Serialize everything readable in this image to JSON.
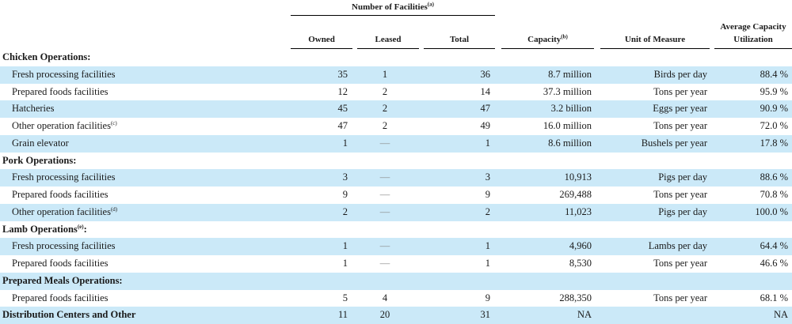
{
  "header": {
    "group_title": "Number of Facilities",
    "group_note": "(a)",
    "owned": "Owned",
    "leased": "Leased",
    "total": "Total",
    "capacity": "Capacity",
    "capacity_note": "(b)",
    "unit_line1": "Unit of Measure",
    "util_line1": "Average Capacity",
    "util_line2": "Utilization"
  },
  "rows": [
    {
      "type": "section",
      "label": "Chicken Operations:",
      "note": "",
      "shaded": false
    },
    {
      "type": "data",
      "label": "Fresh processing facilities",
      "note": "",
      "owned": "35",
      "leased": "1",
      "total": "36",
      "capacity": "8.7 million",
      "unit": "Birds per day",
      "util": "88.4 %",
      "shaded": true
    },
    {
      "type": "data",
      "label": "Prepared foods facilities",
      "note": "",
      "owned": "12",
      "leased": "2",
      "total": "14",
      "capacity": "37.3 million",
      "unit": "Tons per year",
      "util": "95.9 %",
      "shaded": false
    },
    {
      "type": "data",
      "label": "Hatcheries",
      "note": "",
      "owned": "45",
      "leased": "2",
      "total": "47",
      "capacity": "3.2 billion",
      "unit": "Eggs per year",
      "util": "90.9 %",
      "shaded": true
    },
    {
      "type": "data",
      "label": "Other operation facilities",
      "note": "(c)",
      "owned": "47",
      "leased": "2",
      "total": "49",
      "capacity": "16.0 million",
      "unit": "Tons per year",
      "util": "72.0 %",
      "shaded": false
    },
    {
      "type": "data",
      "label": "Grain elevator",
      "note": "",
      "owned": "1",
      "leased": "—",
      "total": "1",
      "capacity": "8.6 million",
      "unit": "Bushels per year",
      "util": "17.8 %",
      "shaded": true
    },
    {
      "type": "section",
      "label": "Pork Operations:",
      "note": "",
      "shaded": false
    },
    {
      "type": "data",
      "label": "Fresh processing facilities",
      "note": "",
      "owned": "3",
      "leased": "—",
      "total": "3",
      "capacity": "10,913",
      "unit": "Pigs per day",
      "util": "88.6 %",
      "shaded": true
    },
    {
      "type": "data",
      "label": "Prepared foods facilities",
      "note": "",
      "owned": "9",
      "leased": "—",
      "total": "9",
      "capacity": "269,488",
      "unit": "Tons per year",
      "util": "70.8 %",
      "shaded": false
    },
    {
      "type": "data",
      "label": "Other operation facilities",
      "note": "(d)",
      "owned": "2",
      "leased": "—",
      "total": "2",
      "capacity": "11,023",
      "unit": "Pigs per day",
      "util": "100.0 %",
      "shaded": true
    },
    {
      "type": "section",
      "label": "Lamb Operations",
      "note": "(e)",
      "suffix": ":",
      "shaded": false
    },
    {
      "type": "data",
      "label": "Fresh processing facilities",
      "note": "",
      "owned": "1",
      "leased": "—",
      "total": "1",
      "capacity": "4,960",
      "unit": "Lambs per day",
      "util": "64.4 %",
      "shaded": true
    },
    {
      "type": "data",
      "label": "Prepared foods facilities",
      "note": "",
      "owned": "1",
      "leased": "—",
      "total": "1",
      "capacity": "8,530",
      "unit": "Tons per year",
      "util": "46.6 %",
      "shaded": false
    },
    {
      "type": "section",
      "label": "Prepared Meals Operations:",
      "note": "",
      "shaded": true
    },
    {
      "type": "data",
      "label": "Prepared foods facilities",
      "note": "",
      "owned": "5",
      "leased": "4",
      "total": "9",
      "capacity": "288,350",
      "unit": "Tons per year",
      "util": "68.1 %",
      "shaded": false
    },
    {
      "type": "section-data",
      "label": "Distribution Centers and Other",
      "note": "",
      "owned": "11",
      "leased": "20",
      "total": "31",
      "capacity": "NA",
      "unit": "",
      "util": "NA",
      "shaded": true
    }
  ]
}
